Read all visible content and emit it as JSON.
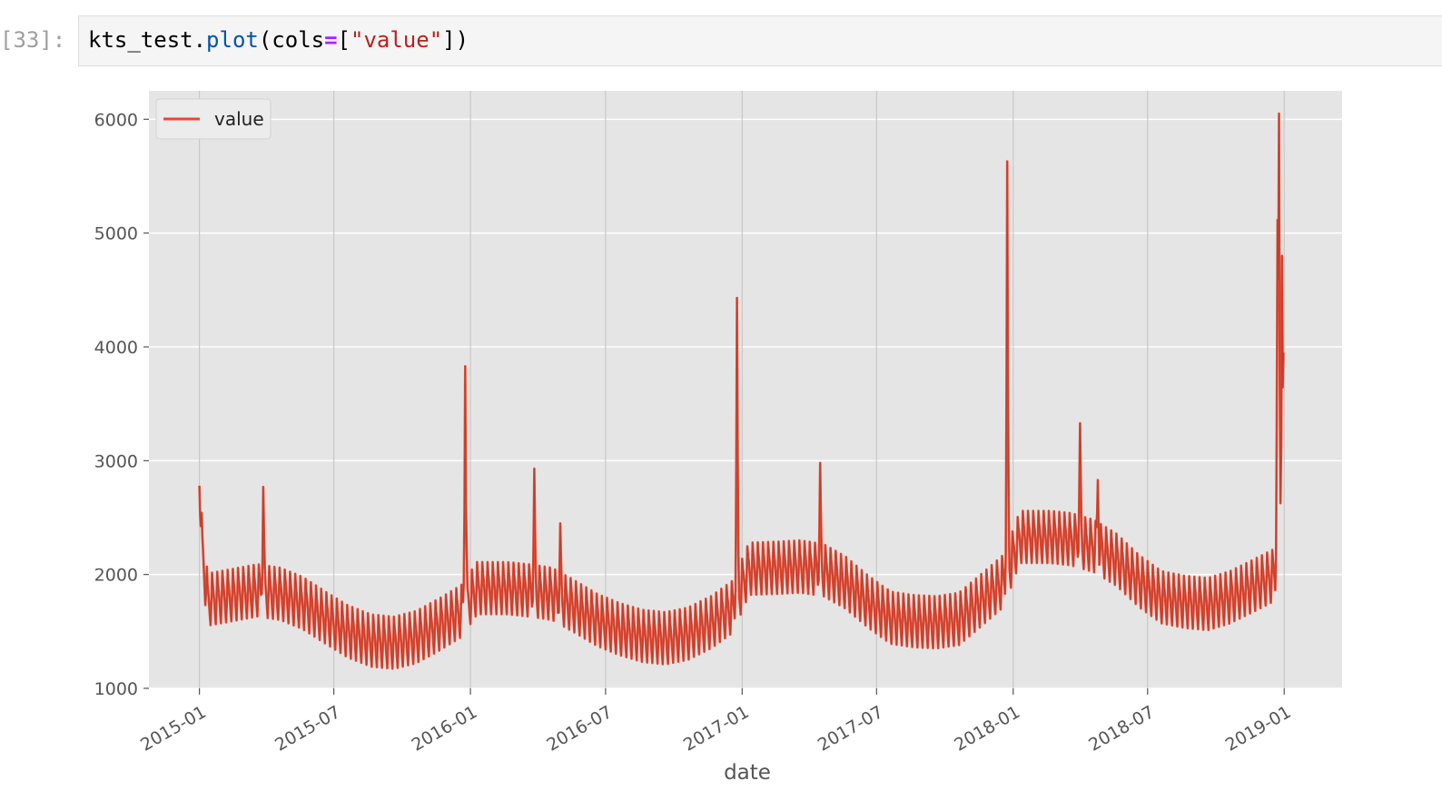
{
  "cell": {
    "prompt": "[33]:",
    "code": {
      "obj": "kts_test.",
      "fn": "plot",
      "open": "(cols",
      "op": "=",
      "bracket_open": "[",
      "str": "\"value\"",
      "close": "])"
    }
  },
  "colors": {
    "line": "#e24a33",
    "line_dark": "#b23a2a",
    "plot_bg": "#e5e5e5",
    "grid": "#ffffff",
    "vgrid": "#c8c8c8",
    "tick_text": "#555555"
  },
  "chart_data": {
    "type": "line",
    "xlabel": "date",
    "ylabel": "",
    "x_range": [
      "2014-10-25",
      "2019-03-20"
    ],
    "ylim": [
      1000,
      6250
    ],
    "yticks": [
      1000,
      2000,
      3000,
      4000,
      5000,
      6000
    ],
    "ytick_labels": [
      "1000",
      "2000",
      "3000",
      "4000",
      "5000",
      "6000"
    ],
    "xticks": [
      "2015-01-01",
      "2015-07-01",
      "2016-01-01",
      "2016-07-01",
      "2017-01-01",
      "2017-07-01",
      "2018-01-01",
      "2018-07-01",
      "2019-01-01"
    ],
    "xtick_labels": [
      "2015-01",
      "2015-07",
      "2016-01",
      "2016-07",
      "2017-01",
      "2017-07",
      "2018-01",
      "2018-07",
      "2019-01"
    ],
    "grid": true,
    "legend": {
      "position": "top-left",
      "entries": [
        "value"
      ]
    },
    "series": [
      {
        "name": "value",
        "sampling": "daily",
        "start": "2015-01-01",
        "end": "2018-12-31",
        "weekly_amplitude": 230,
        "level_points": [
          [
            "2015-01-01",
            2650
          ],
          [
            "2015-01-05",
            2200
          ],
          [
            "2015-01-12",
            1780
          ],
          [
            "2015-02-15",
            1820
          ],
          [
            "2015-03-20",
            1860
          ],
          [
            "2015-04-20",
            1830
          ],
          [
            "2015-05-20",
            1750
          ],
          [
            "2015-06-20",
            1620
          ],
          [
            "2015-07-20",
            1500
          ],
          [
            "2015-08-20",
            1420
          ],
          [
            "2015-09-20",
            1400
          ],
          [
            "2015-10-20",
            1450
          ],
          [
            "2015-11-20",
            1560
          ],
          [
            "2015-12-20",
            1680
          ],
          [
            "2016-01-10",
            1880
          ],
          [
            "2016-02-20",
            1880
          ],
          [
            "2016-03-20",
            1860
          ],
          [
            "2016-04-20",
            1830
          ],
          [
            "2016-05-20",
            1720
          ],
          [
            "2016-06-20",
            1600
          ],
          [
            "2016-07-20",
            1520
          ],
          [
            "2016-08-20",
            1460
          ],
          [
            "2016-09-20",
            1440
          ],
          [
            "2016-10-20",
            1480
          ],
          [
            "2016-11-20",
            1580
          ],
          [
            "2016-12-20",
            1720
          ],
          [
            "2017-01-10",
            2050
          ],
          [
            "2017-02-20",
            2060
          ],
          [
            "2017-03-20",
            2070
          ],
          [
            "2017-04-20",
            2040
          ],
          [
            "2017-05-20",
            1930
          ],
          [
            "2017-06-20",
            1760
          ],
          [
            "2017-07-20",
            1620
          ],
          [
            "2017-08-20",
            1590
          ],
          [
            "2017-09-20",
            1580
          ],
          [
            "2017-10-20",
            1610
          ],
          [
            "2017-11-20",
            1780
          ],
          [
            "2017-12-20",
            1950
          ],
          [
            "2018-01-10",
            2330
          ],
          [
            "2018-02-20",
            2330
          ],
          [
            "2018-03-20",
            2310
          ],
          [
            "2018-04-20",
            2250
          ],
          [
            "2018-05-20",
            2130
          ],
          [
            "2018-06-20",
            1940
          ],
          [
            "2018-07-20",
            1800
          ],
          [
            "2018-08-20",
            1760
          ],
          [
            "2018-09-20",
            1740
          ],
          [
            "2018-10-20",
            1800
          ],
          [
            "2018-11-20",
            1900
          ],
          [
            "2018-12-20",
            2000
          ],
          [
            "2018-12-31",
            2050
          ]
        ],
        "spikes": [
          [
            "2015-01-01",
            2780
          ],
          [
            "2015-03-28",
            2770
          ],
          [
            "2015-12-25",
            3830
          ],
          [
            "2016-03-27",
            2930
          ],
          [
            "2016-05-01",
            2450
          ],
          [
            "2016-12-25",
            4430
          ],
          [
            "2017-04-16",
            2980
          ],
          [
            "2017-12-24",
            5630
          ],
          [
            "2018-04-01",
            3330
          ],
          [
            "2018-04-25",
            2830
          ],
          [
            "2018-12-23",
            5000
          ],
          [
            "2018-12-25",
            6050
          ],
          [
            "2018-12-29",
            4800
          ],
          [
            "2018-12-31",
            3950
          ]
        ]
      }
    ]
  }
}
